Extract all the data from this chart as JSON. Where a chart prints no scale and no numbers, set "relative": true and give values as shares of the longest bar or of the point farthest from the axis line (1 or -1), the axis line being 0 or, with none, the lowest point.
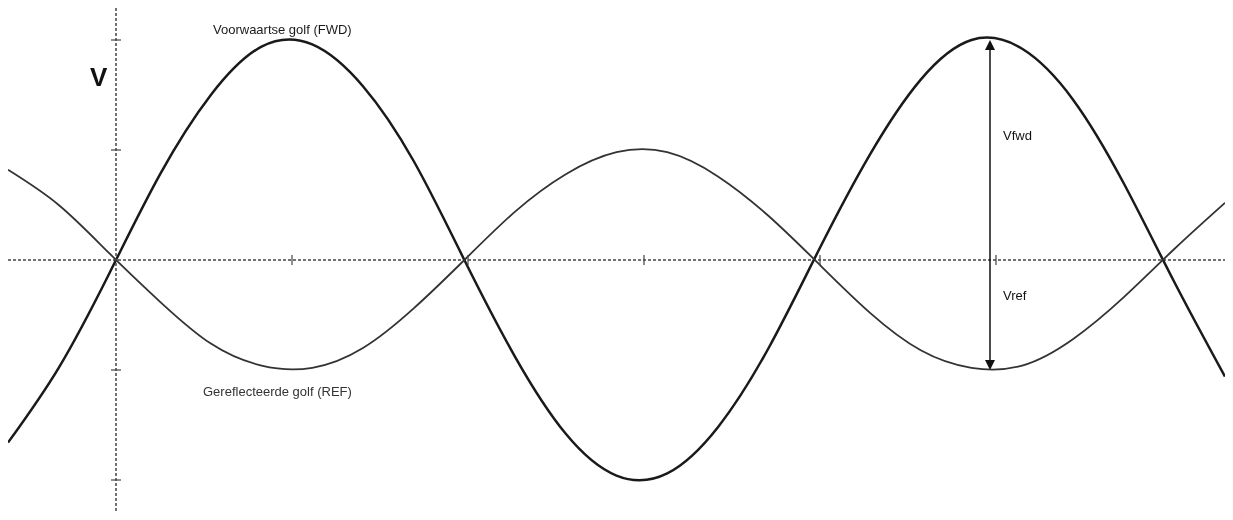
{
  "chart_data": {
    "type": "line",
    "relative": true,
    "ylabel": "V",
    "grid": false,
    "marker": "none",
    "line_style": "solid",
    "categories": [
      null,
      null,
      null,
      null,
      null,
      null,
      null,
      null,
      null,
      null,
      null,
      null,
      null,
      null,
      null,
      null,
      null,
      null,
      null,
      null,
      null,
      null,
      null,
      null,
      null
    ],
    "series": [
      {
        "name": "Voorwaartse golf (FWD)",
        "color": "#1a1a1a",
        "values": [
          -0.83,
          -0.49,
          -0.06,
          0.39,
          0.75,
          0.97,
          0.98,
          0.79,
          0.45,
          0.0,
          -0.44,
          -0.79,
          -0.98,
          -0.97,
          -0.76,
          -0.4,
          0.05,
          0.48,
          0.82,
          1.0,
          0.96,
          0.73,
          0.35,
          -0.1,
          -0.53
        ]
      },
      {
        "name": "Gereflecteerde golf (REF)",
        "color": "#333333",
        "values": [
          0.41,
          0.25,
          0.03,
          -0.19,
          -0.38,
          -0.48,
          -0.49,
          -0.4,
          -0.22,
          0.0,
          0.22,
          0.39,
          0.49,
          0.49,
          0.38,
          0.2,
          -0.02,
          -0.24,
          -0.41,
          -0.49,
          -0.48,
          -0.36,
          -0.17,
          0.05,
          0.26
        ]
      }
    ],
    "ref_lines": [
      {
        "axis": "y",
        "value": 0,
        "color": "#444444",
        "line_style": "dotted"
      }
    ],
    "annotations": [
      "Vfwd",
      "Vref"
    ]
  }
}
